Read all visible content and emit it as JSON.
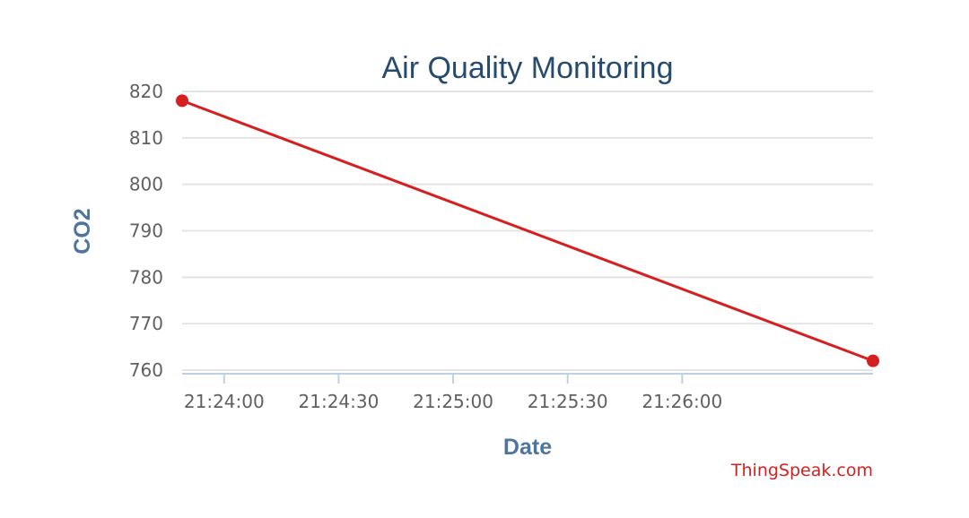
{
  "chart_data": {
    "type": "line",
    "title": "Air Quality Monitoring",
    "xlabel": "Date",
    "ylabel": "CO2",
    "ylim": [
      760,
      820
    ],
    "yticks": [
      "760",
      "770",
      "780",
      "790",
      "800",
      "810",
      "820"
    ],
    "xlim": [
      "21:23:49",
      "21:26:50"
    ],
    "xticks": [
      "21:24:00",
      "21:24:30",
      "21:25:00",
      "21:25:30",
      "21:26:00"
    ],
    "series": [
      {
        "color": "#d62020",
        "points": [
          {
            "x": "21:23:49",
            "y": 818
          },
          {
            "x": "21:26:50",
            "y": 762
          }
        ]
      }
    ],
    "grid": true,
    "legend": "none",
    "credit": "ThingSpeak.com"
  }
}
